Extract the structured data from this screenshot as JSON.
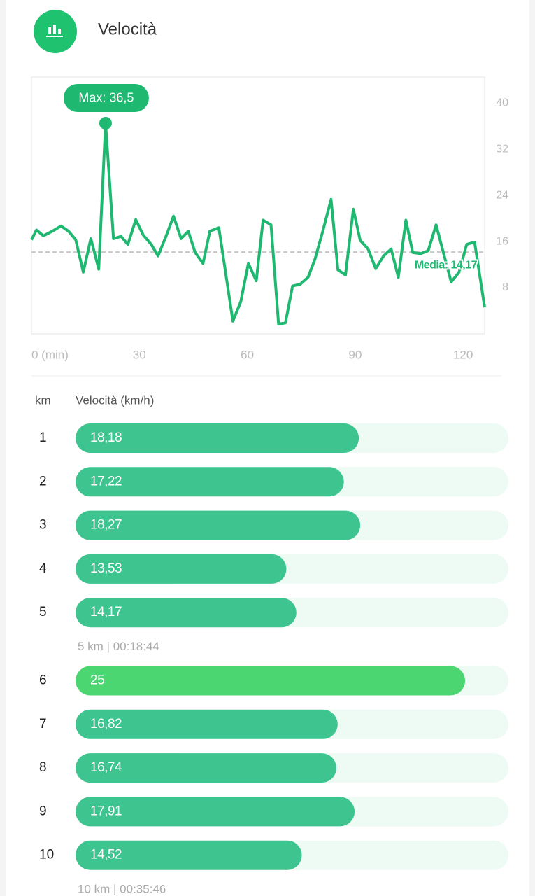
{
  "header": {
    "title": "Velocità"
  },
  "chart_data": {
    "type": "line",
    "color": "#1fb871",
    "x": [
      0,
      1.4,
      3.3,
      5.8,
      8.2,
      10.3,
      12.3,
      14.4,
      16.5,
      18.7,
      20.6,
      22.8,
      24.9,
      26.8,
      29,
      31.1,
      33.3,
      35.2,
      37.4,
      39.5,
      41.6,
      43.6,
      45.5,
      47.7,
      49.6,
      52.1,
      56,
      58.2,
      60.3,
      62.5,
      64.4,
      66.6,
      68.7,
      70.6,
      72.6,
      74.7,
      76.9,
      78.8,
      81,
      83.3,
      85.2,
      87.3,
      89.5,
      91.4,
      93.6,
      95.7,
      97.9,
      100,
      102,
      104.1,
      106,
      108.2,
      110.3,
      112.5,
      114.6,
      116.7,
      118.9,
      121,
      123.2,
      126
    ],
    "values": [
      16.3,
      18,
      17,
      17.8,
      18.7,
      17.8,
      16.3,
      10.7,
      16.5,
      11.2,
      36.5,
      16.5,
      16.9,
      15.5,
      19.8,
      17.1,
      15.5,
      13.5,
      16.9,
      20.4,
      16.5,
      17.8,
      14.1,
      12.2,
      17.8,
      18.4,
      2.2,
      5.6,
      12.2,
      9.2,
      19.7,
      18.9,
      1.7,
      1.9,
      8.3,
      8.6,
      9.8,
      12.9,
      17.8,
      23.3,
      11.1,
      10.2,
      21.6,
      16.2,
      14.7,
      11.3,
      13.5,
      14.7,
      9.8,
      19.7,
      14.1,
      13.9,
      14.4,
      18.9,
      13.9,
      9,
      10.7,
      15.5,
      15.9,
      4.6
    ],
    "xlim": [
      0,
      126
    ],
    "xticks": [
      {
        "value": 0,
        "label": "0 (min)"
      },
      30,
      60,
      90,
      120
    ],
    "ylim": [
      0,
      44.5
    ],
    "yticks": [
      8,
      16,
      24,
      32,
      40
    ],
    "max": {
      "value": 36.5,
      "label": "Max: 36,5"
    },
    "mean": {
      "value": 14.17,
      "label": "Media: 14,17"
    }
  },
  "splits": {
    "header": [
      "km",
      "Velocità (km/h)"
    ],
    "groups": [
      {
        "rows": [
          {
            "km": 1,
            "value": 18.18,
            "value_label": "18,18",
            "color": "#3ec48f"
          },
          {
            "km": 2,
            "value": 17.22,
            "value_label": "17,22",
            "color": "#3ec48f"
          },
          {
            "km": 3,
            "value": 18.27,
            "value_label": "18,27",
            "color": "#3ec48f"
          },
          {
            "km": 4,
            "value": 13.53,
            "value_label": "13,53",
            "color": "#3ec48f"
          },
          {
            "km": 5,
            "value": 14.17,
            "value_label": "14,17",
            "color": "#3ec48f"
          }
        ],
        "summary": "5 km | 00:18:44"
      },
      {
        "rows": [
          {
            "km": 6,
            "value": 25,
            "value_label": "25",
            "color": "#4bd672"
          },
          {
            "km": 7,
            "value": 16.82,
            "value_label": "16,82",
            "color": "#3ec48f"
          },
          {
            "km": 8,
            "value": 16.74,
            "value_label": "16,74",
            "color": "#3ec48f"
          },
          {
            "km": 9,
            "value": 17.91,
            "value_label": "17,91",
            "color": "#3ec48f"
          },
          {
            "km": 10,
            "value": 14.52,
            "value_label": "14,52",
            "color": "#3ec48f"
          }
        ],
        "summary": "10 km | 00:35:46"
      }
    ]
  }
}
